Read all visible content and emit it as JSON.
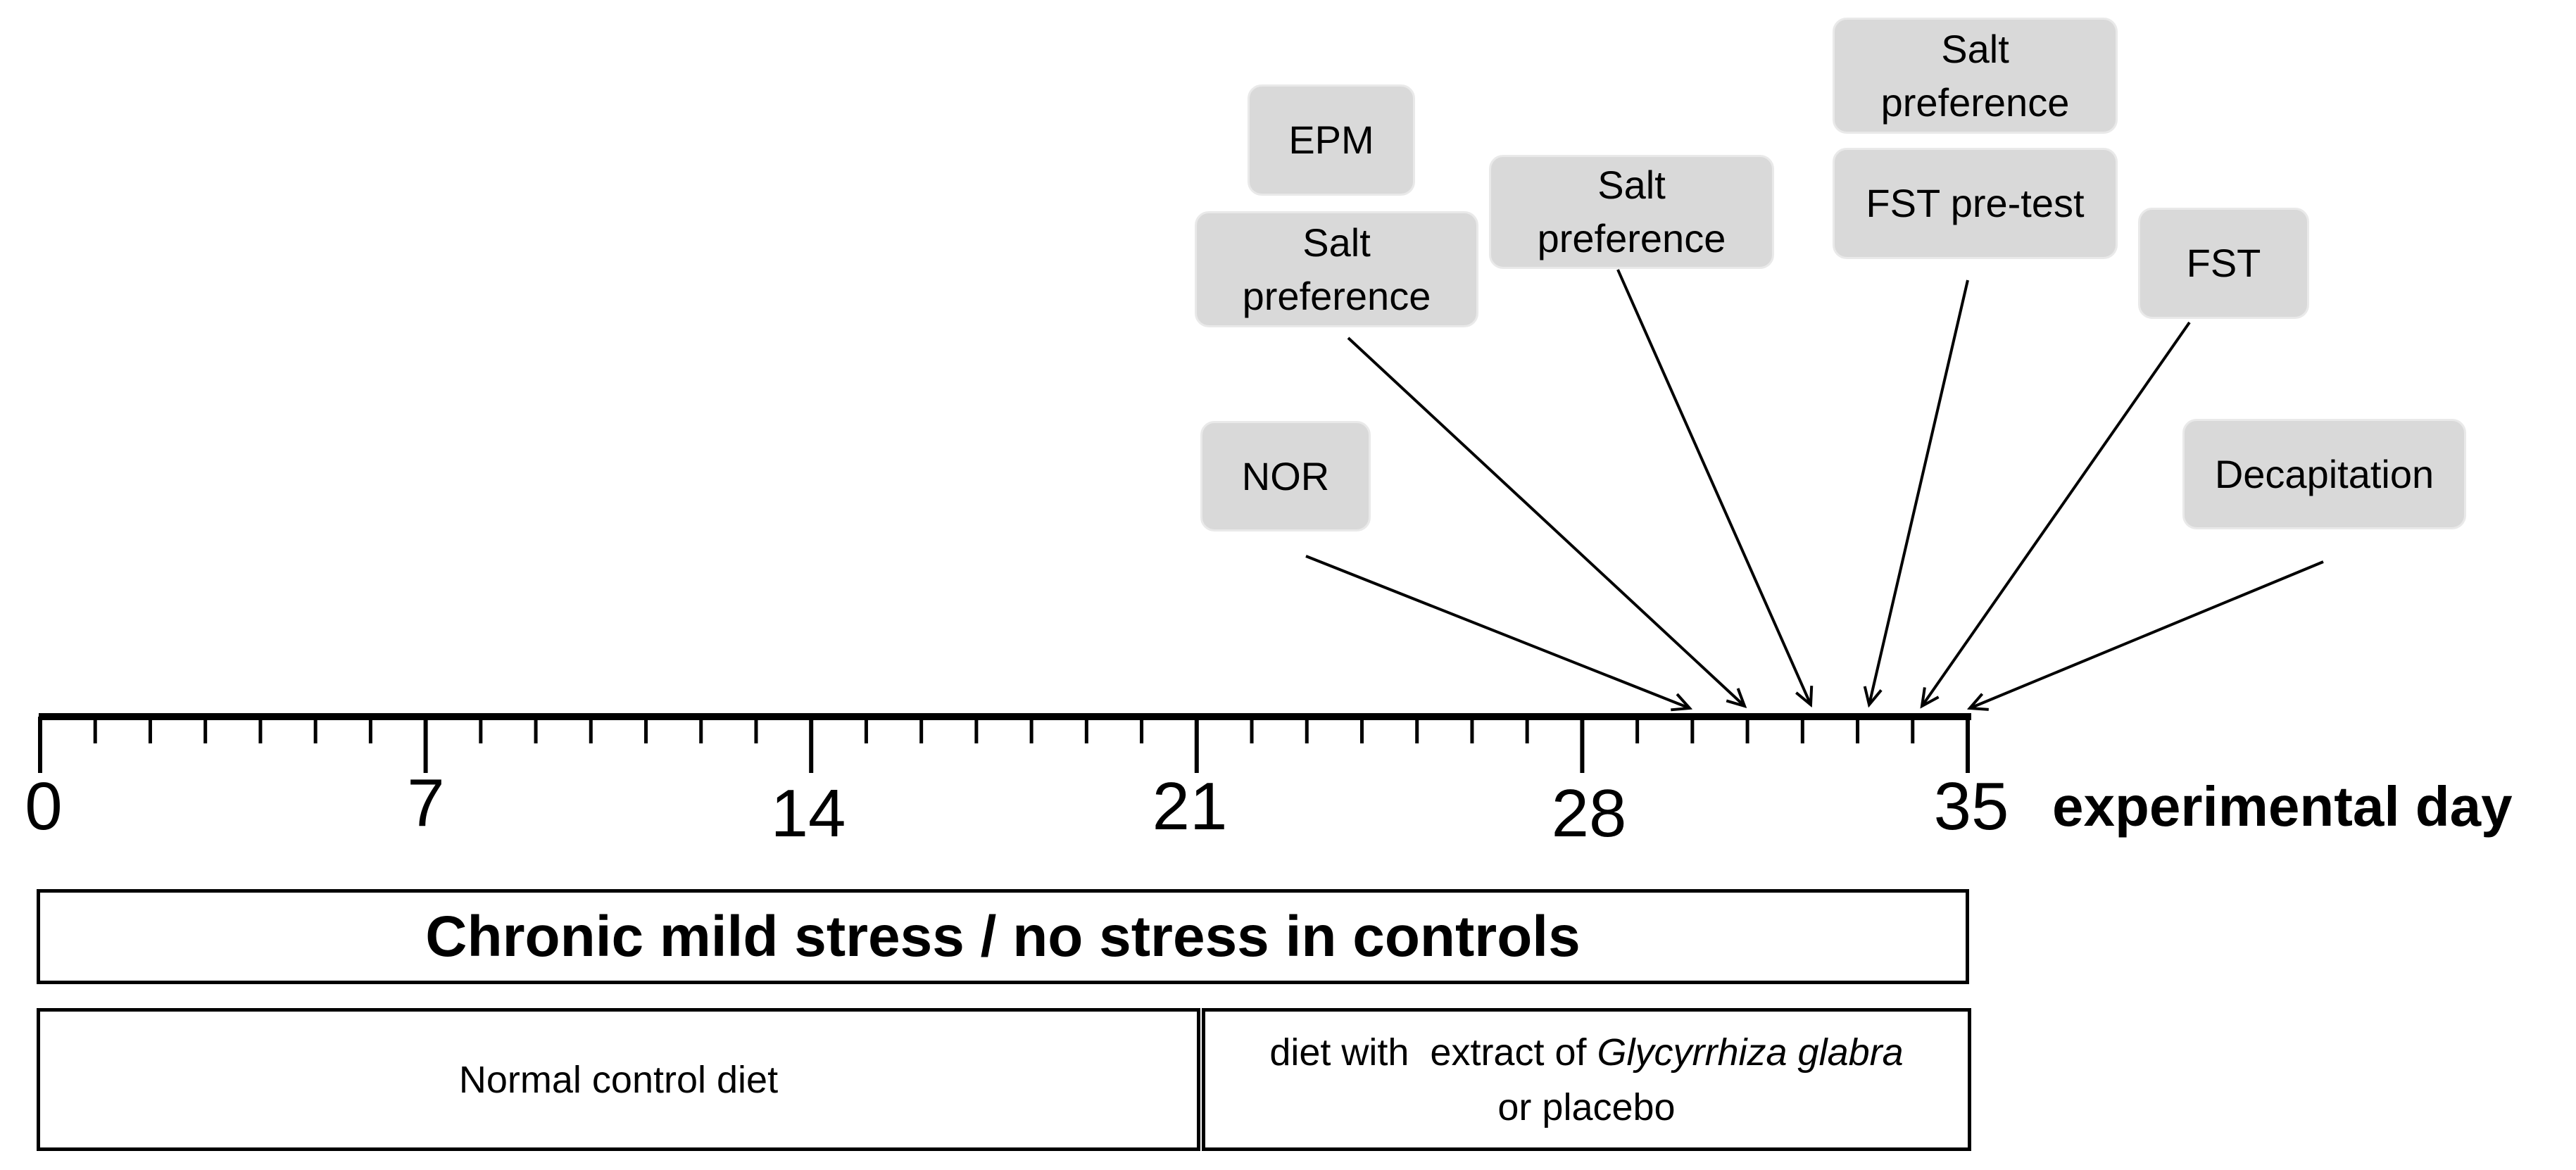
{
  "axis": {
    "day_labels": [
      "0",
      "7",
      "14",
      "21",
      "28",
      "35"
    ],
    "title": "experimental day",
    "range": [
      0,
      35
    ]
  },
  "events": [
    {
      "id": "epm",
      "label": "EPM",
      "target_day": 31
    },
    {
      "id": "salt-1",
      "label": "Salt preference",
      "target_day": 31
    },
    {
      "id": "nor",
      "label": "NOR",
      "target_day": 30
    },
    {
      "id": "salt-2",
      "label": "Salt preference",
      "target_day": 32.2
    },
    {
      "id": "salt-3",
      "label": "Salt preference",
      "target_day": 33.3
    },
    {
      "id": "fst-pretest",
      "label": "FST pre-test",
      "target_day": 33.3
    },
    {
      "id": "fst",
      "label": "FST",
      "target_day": 34.3
    },
    {
      "id": "decapitation",
      "label": "Decapitation",
      "target_day": 35
    }
  ],
  "phases": {
    "stress": "Chronic mild stress / no stress in controls",
    "control_diet": "Normal control diet",
    "treatment_diet_prefix": "diet with  extract of",
    "treatment_diet_species": "Glycyrrhiza glabra",
    "treatment_diet_suffix": "or placebo"
  },
  "colors": {
    "event_box_fill": "#d9d9d9",
    "line": "#000000"
  }
}
